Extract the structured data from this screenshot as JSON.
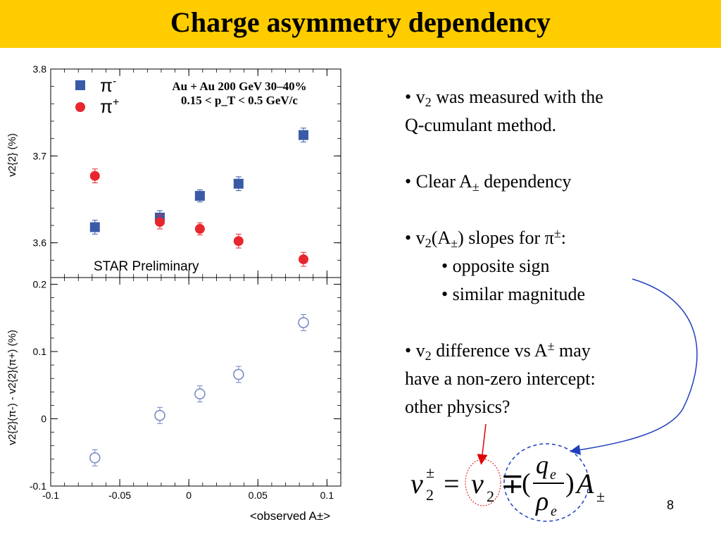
{
  "slide": {
    "title": "Charge asymmetry dependency",
    "page_number": "8",
    "accent_color": "#ffcc00"
  },
  "bullets": {
    "b1": {
      "pre": "• v",
      "sub": "2",
      "post": " was measured with the",
      "line2": "Q-cumulant method."
    },
    "b2": {
      "pre": "• Clear A",
      "sub": "±",
      "post": " dependency"
    },
    "b3": {
      "pre": "• v",
      "sub1": "2",
      "mid": "(A",
      "sub2": "±",
      "mid2": ") slopes for π",
      "sup": "±",
      "post": ":"
    },
    "b3_sub": [
      "• opposite sign",
      "• similar magnitude"
    ],
    "b4": {
      "pre": "• v",
      "sub": "2",
      "mid": " difference vs A",
      "sup": "±",
      "post": " may",
      "line2": "have a non-zero intercept:",
      "line3": "other physics?"
    }
  },
  "formula": {
    "v": "v",
    "pm_sup": "±",
    "two_sub": "2",
    "equals": "=",
    "v2": "v",
    "v2_sub": "2",
    "mp": "∓",
    "lparen": "(",
    "q": "q",
    "q_sub": "e",
    "rho": "ρ",
    "rho_sub": "e",
    "rparen": ")",
    "A": "A",
    "A_sub": "±",
    "colors": {
      "v2_circle": "#e03030",
      "ratio_circle": "#1f3fbf",
      "red_arrow": "#e00000",
      "blue_arrow": "#1f3fbf"
    }
  },
  "chart_data": [
    {
      "type": "scatter",
      "panel": "top",
      "ylabel": "v2{2} (%)",
      "xlim": [
        -0.1,
        0.11
      ],
      "ylim": [
        3.56,
        3.8
      ],
      "yticks": [
        3.6,
        3.7,
        3.8
      ],
      "yticklabels": [
        "3.6",
        "3.7",
        "3.8"
      ],
      "legend_placement": "top-left",
      "annotation_lines": [
        "Au + Au 200 GeV 30–40%",
        "0.15 < p_T < 0.5 GeV/c"
      ],
      "watermark": "STAR Preliminary",
      "series": [
        {
          "name": "π-",
          "legend_main": "π",
          "legend_sup": "-",
          "marker": "square",
          "color": "#3a5aa8",
          "x": [
            -0.068,
            -0.021,
            0.008,
            0.036,
            0.083
          ],
          "y": [
            3.618,
            3.629,
            3.654,
            3.668,
            3.724
          ],
          "err": [
            0.008,
            0.008,
            0.007,
            0.008,
            0.008
          ]
        },
        {
          "name": "π+",
          "legend_main": "π",
          "legend_sup": "+",
          "marker": "circle",
          "color": "#e8262e",
          "x": [
            -0.068,
            -0.021,
            0.008,
            0.036,
            0.083
          ],
          "y": [
            3.677,
            3.624,
            3.616,
            3.602,
            3.581
          ],
          "err": [
            0.008,
            0.008,
            0.007,
            0.008,
            0.008
          ]
        }
      ]
    },
    {
      "type": "scatter",
      "panel": "bottom",
      "ylabel": "v2{2}(π-) - v2{2}(π+) (%)",
      "xlabel": "<observed A±>",
      "xlim": [
        -0.1,
        0.11
      ],
      "ylim": [
        -0.1,
        0.21
      ],
      "xticks": [
        -0.1,
        -0.05,
        0,
        0.05,
        0.1
      ],
      "xticklabels": [
        "-0.1",
        "-0.05",
        "0",
        "0.05",
        "0.1"
      ],
      "yticks": [
        -0.1,
        0,
        0.1,
        0.2
      ],
      "yticklabels": [
        "-0.1",
        "0",
        "0.1",
        "0.2"
      ],
      "series": [
        {
          "marker": "open-circle",
          "color": "#6f86c2",
          "x": [
            -0.068,
            -0.021,
            0.008,
            0.036,
            0.083
          ],
          "y": [
            -0.058,
            0.005,
            0.037,
            0.066,
            0.143
          ],
          "err": [
            0.012,
            0.012,
            0.012,
            0.012,
            0.012
          ]
        }
      ]
    }
  ]
}
